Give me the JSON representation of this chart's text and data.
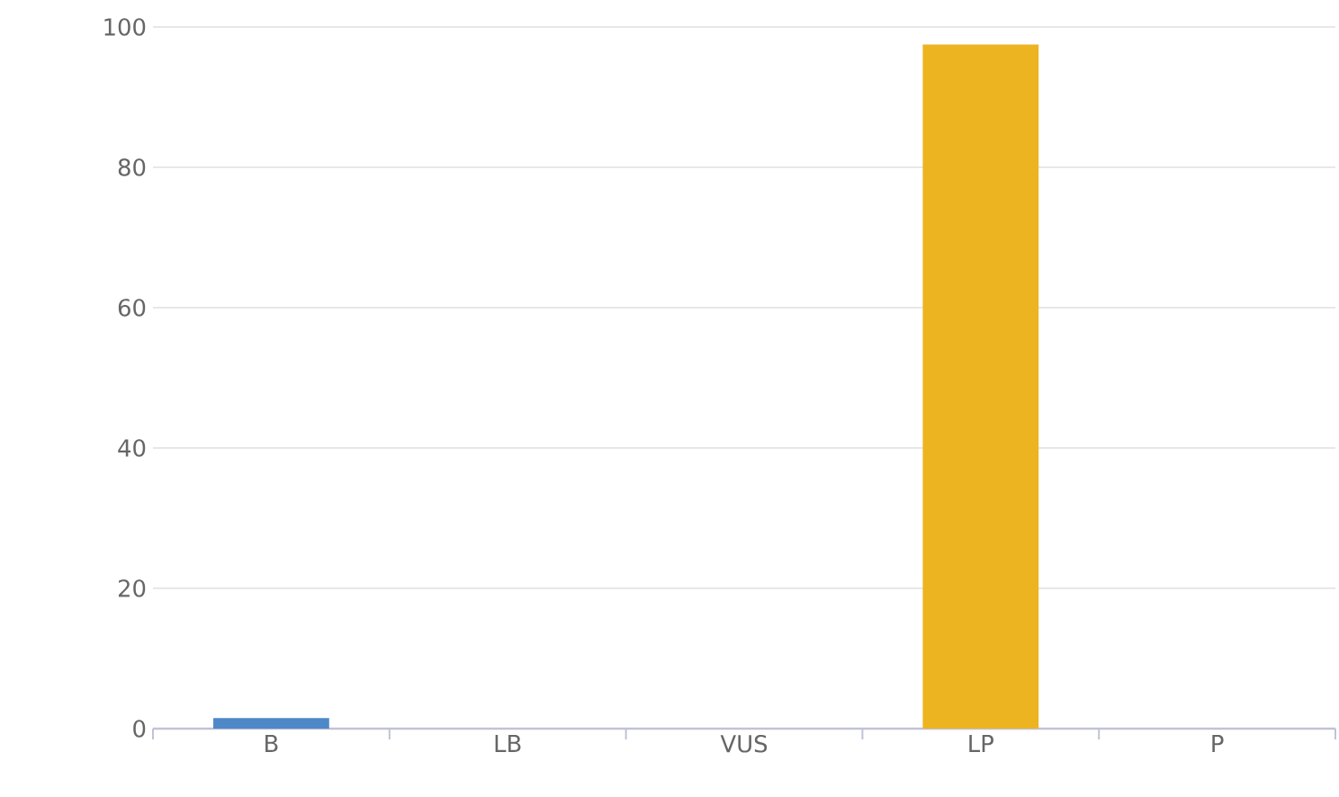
{
  "chart_data": {
    "type": "bar",
    "categories": [
      "B",
      "LB",
      "VUS",
      "LP",
      "P"
    ],
    "values": [
      1.5,
      0,
      0,
      97.5,
      0
    ],
    "colors": [
      "#4e88c9",
      "#4e88c9",
      "#4e88c9",
      "#edb421",
      "#4e88c9"
    ],
    "ylim": [
      0,
      100
    ],
    "yticks": [
      0,
      20,
      40,
      60,
      80,
      100
    ],
    "grid": "y"
  }
}
